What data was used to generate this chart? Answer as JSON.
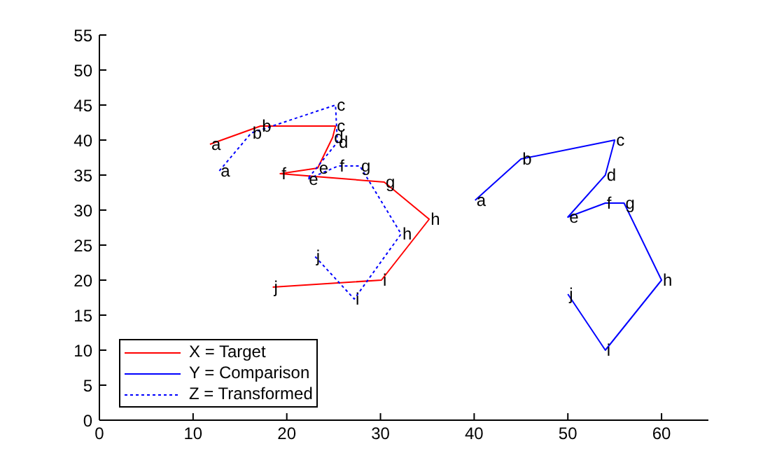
{
  "chart_data": {
    "type": "line",
    "xlim": [
      0,
      65
    ],
    "xticks": [
      0,
      10,
      20,
      30,
      40,
      50,
      60
    ],
    "ylim": [
      0,
      55
    ],
    "yticks": [
      0,
      5,
      10,
      15,
      20,
      25,
      30,
      35,
      40,
      45,
      50,
      55
    ],
    "grid": false,
    "legend": "bottom left",
    "marker": "none",
    "series": [
      {
        "name": "X = Target",
        "color": "#ff0000",
        "line_style": "solid",
        "x": [
          11.8,
          17.2,
          25.2,
          24.9,
          23.3,
          19.3,
          30.4,
          35.2,
          30.1,
          18.5
        ],
        "values": [
          39.4,
          42,
          42,
          40.4,
          36,
          35.2,
          34,
          28.7,
          20,
          19
        ],
        "value_labels": [
          "a",
          "b",
          "c",
          "d",
          "e",
          "f",
          "g",
          "h",
          "i",
          "j"
        ]
      },
      {
        "name": "Y = Comparison",
        "color": "#0000ff",
        "line_style": "solid",
        "x": [
          40.1,
          45,
          55,
          54,
          50,
          54,
          56,
          60,
          54,
          50
        ],
        "values": [
          31.4,
          37.3,
          40,
          35,
          29,
          31,
          31,
          20,
          10,
          18
        ],
        "value_labels": [
          "a",
          "b",
          "c",
          "d",
          "e",
          "f",
          "g",
          "h",
          "i",
          "j"
        ]
      },
      {
        "name": "Z = Transformed",
        "color": "#0000ff",
        "line_style": "dotted",
        "x": [
          12.8,
          16.2,
          25.2,
          25.4,
          22.2,
          25.5,
          27.8,
          32.2,
          27.2,
          23
        ],
        "values": [
          35.6,
          41,
          45,
          39.7,
          34.4,
          36.3,
          36.3,
          26.6,
          17.3,
          23.4
        ],
        "value_labels": [
          "a",
          "b",
          "c",
          "d",
          "e",
          "f",
          "g",
          "h",
          "i",
          "j"
        ]
      }
    ]
  }
}
